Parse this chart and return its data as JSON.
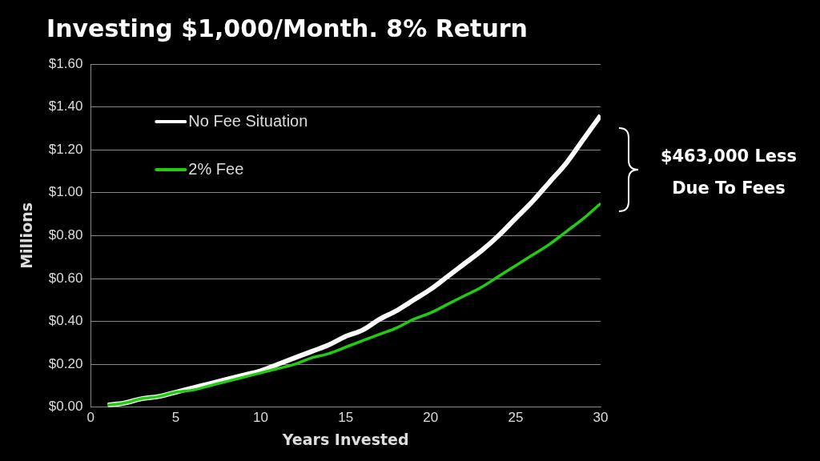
{
  "chart_data": {
    "type": "line",
    "title": "Investing $1,000/Month. 8% Return",
    "xlabel": "Years Invested",
    "ylabel": "Millions",
    "x": [
      1,
      2,
      3,
      4,
      5,
      6,
      7,
      8,
      9,
      10,
      11,
      12,
      13,
      14,
      15,
      16,
      17,
      18,
      19,
      20,
      21,
      22,
      23,
      24,
      25,
      26,
      27,
      28,
      29,
      30
    ],
    "series": [
      {
        "name": "No Fee Situation",
        "color": "#ffffff",
        "values": [
          0.01,
          0.02,
          0.04,
          0.05,
          0.07,
          0.09,
          0.11,
          0.13,
          0.15,
          0.17,
          0.2,
          0.23,
          0.26,
          0.29,
          0.33,
          0.36,
          0.41,
          0.45,
          0.5,
          0.55,
          0.61,
          0.67,
          0.73,
          0.8,
          0.88,
          0.96,
          1.05,
          1.14,
          1.25,
          1.36
        ]
      },
      {
        "name": "2% Fee",
        "color": "#22cc11",
        "values": [
          0.01,
          0.02,
          0.04,
          0.05,
          0.07,
          0.08,
          0.1,
          0.12,
          0.14,
          0.16,
          0.18,
          0.2,
          0.23,
          0.25,
          0.28,
          0.31,
          0.34,
          0.37,
          0.41,
          0.44,
          0.48,
          0.52,
          0.56,
          0.61,
          0.66,
          0.71,
          0.76,
          0.82,
          0.88,
          0.95
        ]
      }
    ],
    "xlim": [
      0,
      30
    ],
    "xticks": [
      0,
      5,
      10,
      15,
      20,
      25,
      30
    ],
    "ylim": [
      0,
      1.6
    ],
    "yticks": [
      {
        "value": 0,
        "label": "$0.00"
      },
      {
        "value": 0.2,
        "label": "$0.20"
      },
      {
        "value": 0.4,
        "label": "$0.40"
      },
      {
        "value": 0.6,
        "label": "$0.60"
      },
      {
        "value": 0.8,
        "label": "$0.80"
      },
      {
        "value": 1,
        "label": "$1.00"
      },
      {
        "value": 1.2,
        "label": "$1.20"
      },
      {
        "value": 1.4,
        "label": "$1.40"
      },
      {
        "value": 1.6,
        "label": "$1.60"
      }
    ],
    "grid": "y",
    "legend": "top left",
    "marker": "none",
    "line_style": "solid",
    "annotations": [
      "$463,000 Less Due To Fees"
    ]
  }
}
